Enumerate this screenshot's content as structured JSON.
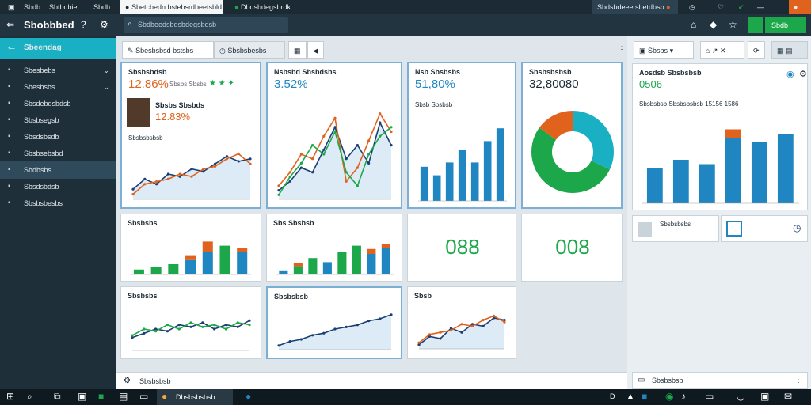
{
  "titlebar": {
    "tabs": [
      "Sbdb",
      "Sbtbdbie",
      "Sbdb"
    ],
    "browser_tab": "Sbetcbedn bstebsrdbeetsbld",
    "browser_tab2": "Dbdsbdegsbrdk",
    "right_tab": "Sbdsbdeeetsbetdbsb"
  },
  "appbar": {
    "logo": "Sbobbbed",
    "search_placeholder": "Sbdbeedsbdsbdegsbdsb",
    "action_label": "Sbdb"
  },
  "sidebar": {
    "header": "Sbeendag",
    "items": [
      {
        "label": "Sbesbebs",
        "icon": "home-icon"
      },
      {
        "label": "Sbesbsbs",
        "icon": "folder-icon"
      },
      {
        "label": "Sbsdebdsbdsb",
        "icon": "list-icon"
      },
      {
        "label": "Sbsbsegsb",
        "icon": "box-icon"
      },
      {
        "label": "Sbsdsbsdb",
        "icon": "cube-icon"
      },
      {
        "label": "Sbsbsebsbd",
        "icon": "user-icon"
      },
      {
        "label": "Sbdbsbs",
        "icon": "chart-icon"
      },
      {
        "label": "Sbsdsbdsb",
        "icon": "gear-icon"
      },
      {
        "label": "Sbsbsbesbs",
        "icon": "help-icon"
      }
    ]
  },
  "toolbar": {
    "filter_label": "Sbesbsbsd bstsbs",
    "mode_label": "Sbsbsbesbs"
  },
  "cards": {
    "c1": {
      "title": "Sbsbsbdsb",
      "value": "12.86%",
      "sub": "Sbsbs Sbsbs",
      "inner_title": "Sbsbs Sbsbds",
      "inner_value": "12.83%",
      "axis": "Sbsbsbsbsb"
    },
    "c2": {
      "title": "Nsbsbd Sbsbdsbs",
      "value": "3.52%"
    },
    "c3": {
      "title": "Nsb Sbsbsbs",
      "value": "51,80%",
      "sub": "Sbsb Sbsbsb"
    },
    "c4": {
      "title": "Sbsbsbsbsb",
      "value": "32,80080"
    },
    "c5": {
      "title": "Sbsbsbs"
    },
    "c6": {
      "title": "Sbs Sbsbsb"
    },
    "c7": {
      "value": "088"
    },
    "c8": {
      "value": "008"
    },
    "c9": {
      "title": "Sbsbsbs"
    },
    "c10": {
      "title": "Sbsbsbsb"
    },
    "c11": {
      "title": "Sbsb"
    }
  },
  "right": {
    "dropdown": "Sbsbs",
    "card_title": "Aosdsb Sbsbsbsb",
    "card_value": "0506",
    "card_sub": "Sbsbsbsb Sbsbsbsbsb 15156 1586",
    "bottom_label": "Sbsbsbsbs",
    "footer_label": "Sbsbsbsb"
  },
  "footer": {
    "label": "Sbsbsbsb"
  },
  "taskbar": {
    "app": "Dbsbsbsbsb"
  },
  "colors": {
    "blue": "#1f86c2",
    "green": "#1ca84a",
    "orange": "#e0621c",
    "navy": "#1b3f73",
    "teal": "#1ab0c4"
  }
}
